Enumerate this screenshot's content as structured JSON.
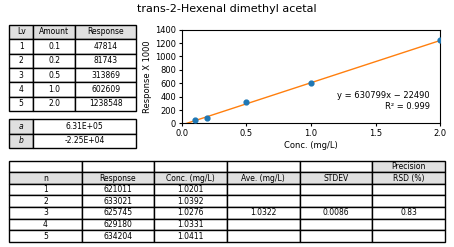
{
  "chart_data": [
    {
      "type": "scatter",
      "title": "trans-2-Hexenal dimethyl acetal",
      "x": [
        0.1,
        0.2,
        0.5,
        1.0,
        2.0
      ],
      "values": [
        47.814,
        81.743,
        313.869,
        602.609,
        1238.548
      ],
      "line": {
        "x": [
          0.0,
          2.05
        ],
        "values": [
          -22.49,
          1270.64795
        ]
      },
      "xlabel": "Conc. (mg/L)",
      "ylabel": "Response X 1000",
      "xlim": [
        0.0,
        2.0
      ],
      "ylim": [
        0,
        1400
      ],
      "xticks": [
        0.0,
        0.5,
        1.0,
        1.5,
        2.0
      ],
      "yticks": [
        0,
        200,
        400,
        600,
        800,
        1000,
        1200,
        1400
      ],
      "annotations": [
        "y = 630799x − 22490",
        "R² = 0.999"
      ]
    },
    {
      "type": "table",
      "columns": [
        "Lv",
        "Amount",
        "Response"
      ],
      "rows": [
        [
          1,
          0.1,
          47814
        ],
        [
          2,
          0.2,
          81743
        ],
        [
          3,
          0.5,
          313869
        ],
        [
          4,
          1.0,
          602609
        ],
        [
          5,
          2.0,
          1238548
        ]
      ],
      "coefficients": [
        {
          "label": "a",
          "value": "6.31E+05"
        },
        {
          "label": "b",
          "value": "-2.25E+04"
        }
      ]
    },
    {
      "type": "table",
      "group_header": "Precision",
      "columns": [
        "n",
        "Response",
        "Conc. (mg/L)",
        "Ave. (mg/L)",
        "STDEV",
        "RSD (%)"
      ],
      "rows": [
        [
          1,
          621011,
          1.0201
        ],
        [
          2,
          633021,
          1.0392
        ],
        [
          3,
          625745,
          1.0276
        ],
        [
          4,
          629180,
          1.0331
        ],
        [
          5,
          634204,
          1.0411
        ]
      ],
      "summary": [
        1.0322,
        0.0086,
        0.83
      ]
    }
  ]
}
